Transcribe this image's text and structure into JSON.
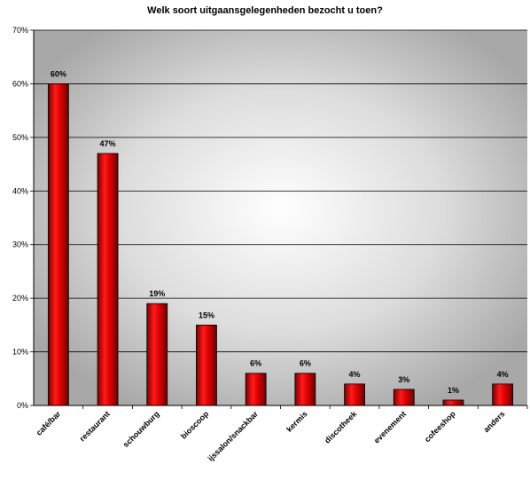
{
  "chart_data": {
    "type": "bar",
    "title": "Welk soort uitgaansgelegenheden bezocht u toen?",
    "xlabel": "",
    "ylabel": "",
    "categories": [
      "café/bar",
      "restaurant",
      "schouwburg",
      "bioscoop",
      "ijssalon/snackbar",
      "kermis",
      "discotheek",
      "evenement",
      "cofeeshop",
      "anders"
    ],
    "values": [
      60,
      47,
      19,
      15,
      6,
      6,
      4,
      3,
      1,
      4
    ],
    "value_labels": [
      "60%",
      "47%",
      "19%",
      "15%",
      "6%",
      "6%",
      "4%",
      "3%",
      "1%",
      "4%"
    ],
    "ylim": [
      0,
      70
    ],
    "yticks": [
      0,
      10,
      20,
      30,
      40,
      50,
      60,
      70
    ],
    "ytick_labels": [
      "0%",
      "10%",
      "20%",
      "30%",
      "40%",
      "50%",
      "60%",
      "70%"
    ],
    "grid": true,
    "legend": "none",
    "bar_color": "#cc0000",
    "plot_background": "radial gradient, white center to gray edges"
  }
}
